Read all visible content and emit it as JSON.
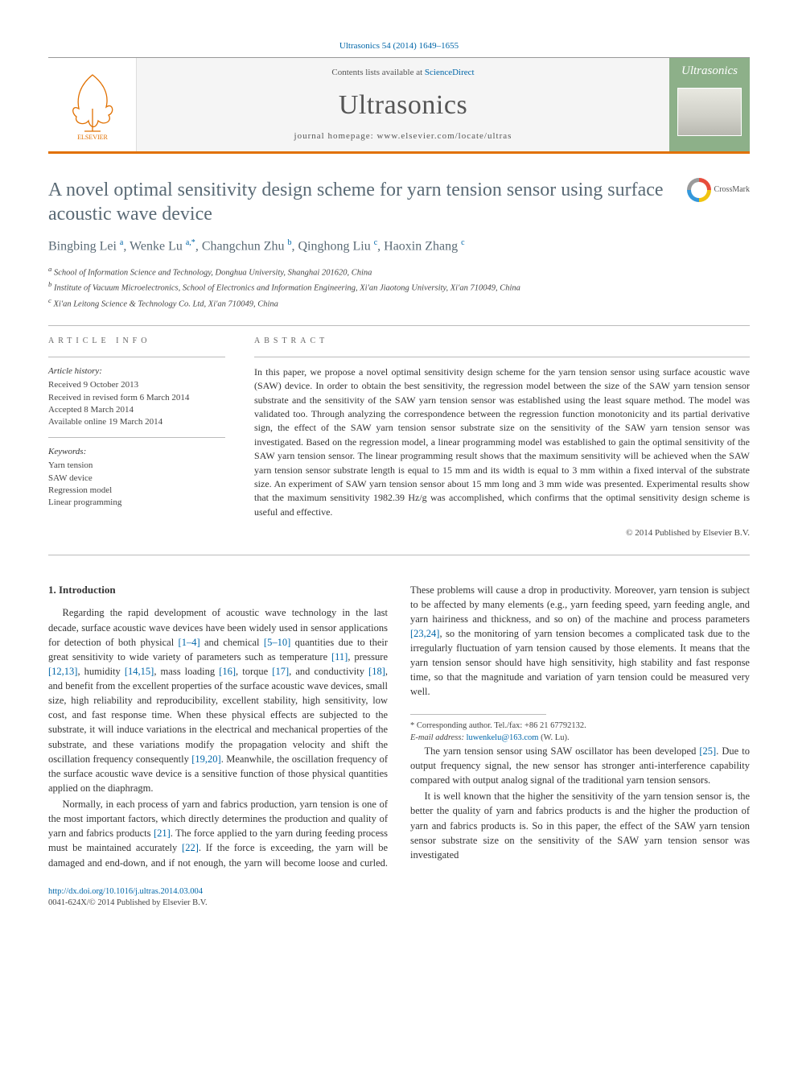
{
  "citation": "Ultrasonics 54 (2014) 1649–1655",
  "masthead": {
    "contents_prefix": "Contents lists available at ",
    "contents_link": "ScienceDirect",
    "journal": "Ultrasonics",
    "homepage_prefix": "journal homepage: ",
    "homepage": "www.elsevier.com/locate/ultras",
    "cover_label": "Ultrasonics",
    "elsevier_label": "ELSEVIER"
  },
  "title": "A novel optimal sensitivity design scheme for yarn tension sensor using surface acoustic wave device",
  "crossmark": "CrossMark",
  "authors_html": "Bingbing Lei <sup class='sup'>a</sup>, Wenke Lu <sup class='sup'>a,*</sup>, Changchun Zhu <sup class='sup'>b</sup>, Qinghong Liu <sup class='sup'>c</sup>, Haoxin Zhang <sup class='sup'>c</sup>",
  "affiliations": [
    "a School of Information Science and Technology, Donghua University, Shanghai 201620, China",
    "b Institute of Vacuum Microelectronics, School of Electronics and Information Engineering, Xi'an Jiaotong University, Xi'an 710049, China",
    "c Xi'an Leitong Science & Technology Co. Ltd, Xi'an 710049, China"
  ],
  "info": {
    "label": "article info",
    "history_label": "Article history:",
    "history": [
      "Received 9 October 2013",
      "Received in revised form 6 March 2014",
      "Accepted 8 March 2014",
      "Available online 19 March 2014"
    ],
    "keywords_label": "Keywords:",
    "keywords": [
      "Yarn tension",
      "SAW device",
      "Regression model",
      "Linear programming"
    ]
  },
  "abstract": {
    "label": "abstract",
    "text": "In this paper, we propose a novel optimal sensitivity design scheme for the yarn tension sensor using surface acoustic wave (SAW) device. In order to obtain the best sensitivity, the regression model between the size of the SAW yarn tension sensor substrate and the sensitivity of the SAW yarn tension sensor was established using the least square method. The model was validated too. Through analyzing the correspondence between the regression function monotonicity and its partial derivative sign, the effect of the SAW yarn tension sensor substrate size on the sensitivity of the SAW yarn tension sensor was investigated. Based on the regression model, a linear programming model was established to gain the optimal sensitivity of the SAW yarn tension sensor. The linear programming result shows that the maximum sensitivity will be achieved when the SAW yarn tension sensor substrate length is equal to 15 mm and its width is equal to 3 mm within a fixed interval of the substrate size. An experiment of SAW yarn tension sensor about 15 mm long and 3 mm wide was presented. Experimental results show that the maximum sensitivity 1982.39 Hz/g was accomplished, which confirms that the optimal sensitivity design scheme is useful and effective.",
    "copyright": "© 2014 Published by Elsevier B.V."
  },
  "section1_heading": "1. Introduction",
  "para1": "Regarding the rapid development of acoustic wave technology in the last decade, surface acoustic wave devices have been widely used in sensor applications for detection of both physical <span class='cite'>[1–4]</span> and chemical <span class='cite'>[5–10]</span> quantities due to their great sensitivity to wide variety of parameters such as temperature <span class='cite'>[11]</span>, pressure <span class='cite'>[12,13]</span>, humidity <span class='cite'>[14,15]</span>, mass loading <span class='cite'>[16]</span>, torque <span class='cite'>[17]</span>, and conductivity <span class='cite'>[18]</span>, and benefit from the excellent properties of the surface acoustic wave devices, small size, high reliability and reproducibility, excellent stability, high sensitivity, low cost, and fast response time. When these physical effects are subjected to the substrate, it will induce variations in the electrical and mechanical properties of the substrate, and these variations modify the propagation velocity and shift the oscillation frequency consequently <span class='cite'>[19,20]</span>. Meanwhile, the oscillation frequency of the surface acoustic wave device is a sensitive function of those physical quantities applied on the diaphragm.",
  "para2": "Normally, in each process of yarn and fabrics production, yarn tension is one of the most important factors, which directly determines the production and quality of yarn and fabrics products <span class='cite'>[21]</span>. The force applied to the yarn during feeding process must be maintained accurately <span class='cite'>[22]</span>. If the force is exceeding, the yarn will be damaged and end-down, and if not enough, the yarn will become loose and curled. These problems will cause a drop in productivity. Moreover, yarn tension is subject to be affected by many elements (e.g., yarn feeding speed, yarn feeding angle, and yarn hairiness and thickness, and so on) of the machine and process parameters <span class='cite'>[23,24]</span>, so the monitoring of yarn tension becomes a complicated task due to the irregularly fluctuation of yarn tension caused by those elements. It means that the yarn tension sensor should have high sensitivity, high stability and fast response time, so that the magnitude and variation of yarn tension could be measured very well.",
  "para3": "The yarn tension sensor using SAW oscillator has been developed <span class='cite'>[25]</span>. Due to output frequency signal, the new sensor has stronger anti-interference capability compared with output analog signal of the traditional yarn tension sensors.",
  "para4": "It is well known that the higher the sensitivity of the yarn tension sensor is, the better the quality of yarn and fabrics products is and the higher the production of yarn and fabrics products is. So in this paper, the effect of the SAW yarn tension sensor substrate size on the sensitivity of the SAW yarn tension sensor was investigated",
  "footnote": {
    "corr": "* Corresponding author. Tel./fax: +86 21 67792132.",
    "email_label": "E-mail address: ",
    "email": "luwenkelu@163.com",
    "email_suffix": " (W. Lu)."
  },
  "doi": {
    "url": "http://dx.doi.org/10.1016/j.ultras.2014.03.004",
    "issn_line": "0041-624X/© 2014 Published by Elsevier B.V."
  }
}
